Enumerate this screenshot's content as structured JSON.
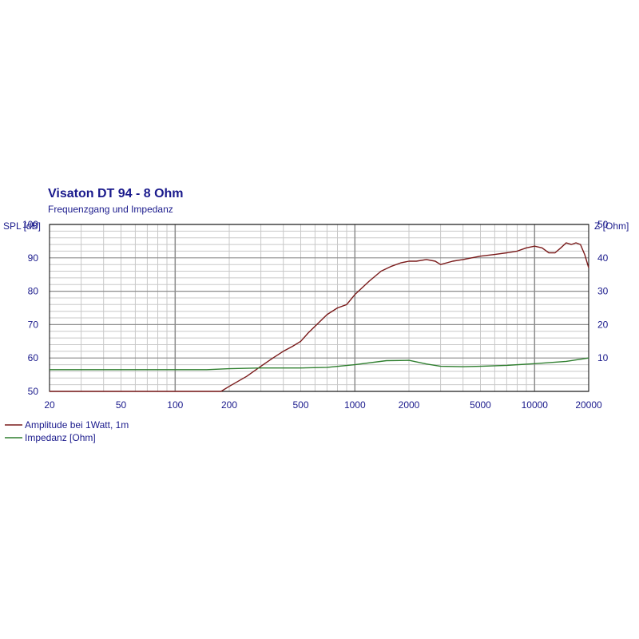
{
  "chart_data": {
    "type": "line",
    "title": "Visaton DT 94 - 8 Ohm",
    "subtitle": "Frequenzgang und Impedanz",
    "ylabel_left": "SPL [dB]",
    "ylabel_right": "Z [Ohm]",
    "x_scale": "log",
    "xlim": [
      20,
      20000
    ],
    "ylim_left": [
      50,
      100
    ],
    "ylim_right": [
      0,
      50
    ],
    "x_ticks": [
      20,
      50,
      100,
      200,
      500,
      1000,
      2000,
      5000,
      10000,
      20000
    ],
    "y_ticks_left": [
      50,
      60,
      70,
      80,
      90,
      100
    ],
    "y_ticks_right": [
      10,
      20,
      30,
      40,
      50
    ],
    "grid": true,
    "legend_position": "bottom-left",
    "series": [
      {
        "name": "Amplitude bei 1Watt, 1m",
        "axis": "left",
        "color": "#7a1a1a",
        "x": [
          20,
          100,
          180,
          200,
          250,
          300,
          350,
          400,
          450,
          500,
          550,
          600,
          700,
          800,
          900,
          1000,
          1200,
          1400,
          1600,
          1800,
          2000,
          2200,
          2500,
          2800,
          3000,
          3500,
          4000,
          5000,
          6000,
          7000,
          8000,
          9000,
          10000,
          11000,
          12000,
          13000,
          14000,
          15000,
          16000,
          17000,
          18000,
          19000,
          20000
        ],
        "y": [
          50,
          50,
          50,
          51.5,
          54.5,
          57.5,
          60,
          62,
          63.5,
          65,
          67.5,
          69.5,
          73,
          75,
          76,
          79,
          83,
          86,
          87.5,
          88.5,
          89,
          89,
          89.5,
          89,
          88,
          89,
          89.5,
          90.5,
          91,
          91.5,
          92,
          93,
          93.5,
          93,
          91.5,
          91.5,
          93,
          94.5,
          94,
          94.5,
          94,
          91,
          87
        ]
      },
      {
        "name": "Impedanz [Ohm]",
        "axis": "right",
        "color": "#2f7f2f",
        "x": [
          20,
          100,
          150,
          200,
          300,
          500,
          700,
          1000,
          1500,
          2000,
          2500,
          3000,
          4000,
          5000,
          7000,
          10000,
          15000,
          20000
        ],
        "y": [
          6.5,
          6.5,
          6.5,
          6.8,
          7.0,
          7.0,
          7.2,
          8.0,
          9.2,
          9.3,
          8.2,
          7.5,
          7.4,
          7.5,
          7.8,
          8.3,
          9.0,
          10.0
        ]
      }
    ]
  }
}
